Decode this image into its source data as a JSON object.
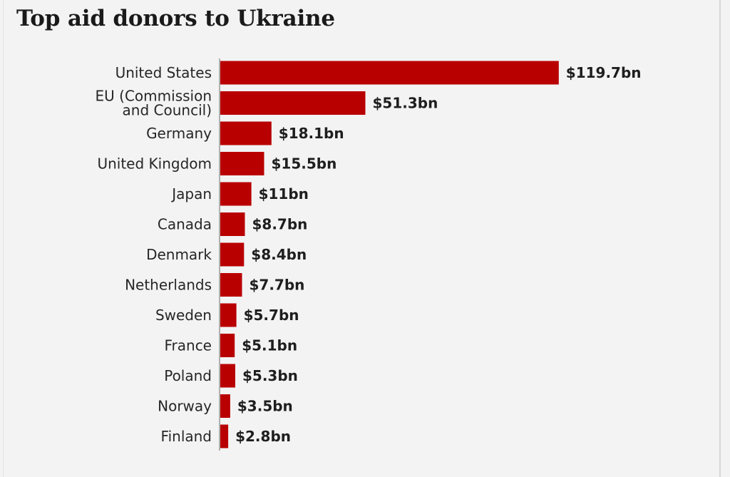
{
  "chart_data": {
    "type": "bar",
    "orientation": "horizontal",
    "title": "Top aid donors to Ukraine",
    "categories": [
      "United States",
      "EU (Commission and Council)",
      "Germany",
      "United Kingdom",
      "Japan",
      "Canada",
      "Denmark",
      "Netherlands",
      "Sweden",
      "France",
      "Poland",
      "Norway",
      "Finland"
    ],
    "category_lines": [
      [
        "United States"
      ],
      [
        "EU (Commission",
        "and Council)"
      ],
      [
        "Germany"
      ],
      [
        "United Kingdom"
      ],
      [
        "Japan"
      ],
      [
        "Canada"
      ],
      [
        "Denmark"
      ],
      [
        "Netherlands"
      ],
      [
        "Sweden"
      ],
      [
        "France"
      ],
      [
        "Poland"
      ],
      [
        "Norway"
      ],
      [
        "Finland"
      ]
    ],
    "values": [
      119.7,
      51.3,
      18.1,
      15.5,
      11,
      8.7,
      8.4,
      7.7,
      5.7,
      5.1,
      5.3,
      3.5,
      2.8
    ],
    "value_labels": [
      "$119.7bn",
      "$51.3bn",
      "$18.1bn",
      "$15.5bn",
      "$11bn",
      "$8.7bn",
      "$8.4bn",
      "$7.7bn",
      "$5.7bn",
      "$5.1bn",
      "$5.3bn",
      "$3.5bn",
      "$2.8bn"
    ],
    "unit": "$bn",
    "xlim": [
      0,
      120
    ],
    "grid": false,
    "legend": "none",
    "bar_color": "#b90000"
  }
}
